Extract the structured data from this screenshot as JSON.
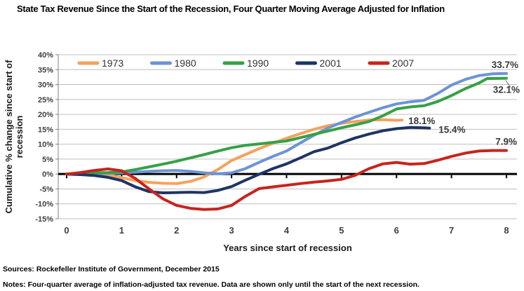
{
  "title": "State Tax Revenue Since the Start of the Recession, Four Quarter Moving Average Adjusted for Inflation",
  "footer": {
    "sources": "Sources: Rockefeller Institute of Government, December 2015",
    "notes": "Notes: Four-quarter average of inflation-adjusted tax revenue. Data are shown only until the start of the next recession."
  },
  "chart_data": {
    "type": "line",
    "title": "State Tax Revenue Since the Start of the Recession, Four Quarter Moving Average Adjusted for Inflation",
    "xlabel": "Years since start of recession",
    "ylabel": "Cumulative % change since start of recession",
    "ylabel_lines": [
      "Cumulative % change since start of",
      "recession"
    ],
    "xlim": [
      0,
      8
    ],
    "ylim": [
      -15,
      40
    ],
    "x_ticks": [
      0,
      1,
      2,
      3,
      4,
      5,
      6,
      7,
      8
    ],
    "y_ticks": [
      40,
      35,
      30,
      25,
      20,
      15,
      10,
      5,
      0,
      -5,
      -10,
      -15
    ],
    "y_tick_suffix": "%",
    "grid": true,
    "grid_color": "#BFBFBF",
    "zero_line_color": "#000000",
    "legend_position": "top",
    "series": [
      {
        "name": "1973",
        "color": "#F5A25D",
        "end_label": "18.1%",
        "points": [
          [
            0,
            0
          ],
          [
            0.25,
            0.2
          ],
          [
            0.5,
            0.1
          ],
          [
            0.75,
            -0.3
          ],
          [
            1,
            -1.2
          ],
          [
            1.25,
            -2.2
          ],
          [
            1.5,
            -2.8
          ],
          [
            1.75,
            -3.1
          ],
          [
            2,
            -3.2
          ],
          [
            2.25,
            -2.5
          ],
          [
            2.5,
            -1.0
          ],
          [
            2.75,
            1.5
          ],
          [
            3,
            4.5
          ],
          [
            3.25,
            6.5
          ],
          [
            3.5,
            8.5
          ],
          [
            3.75,
            10.3
          ],
          [
            4,
            12.0
          ],
          [
            4.25,
            13.5
          ],
          [
            4.5,
            15.0
          ],
          [
            4.75,
            16.2
          ],
          [
            5,
            17.0
          ],
          [
            5.25,
            17.6
          ],
          [
            5.5,
            18.1
          ],
          [
            5.75,
            18.2
          ],
          [
            6,
            18.0
          ],
          [
            6.1,
            18.1
          ]
        ]
      },
      {
        "name": "1980",
        "color": "#6D93D5",
        "end_label": "33.7%",
        "points": [
          [
            0,
            0
          ],
          [
            0.25,
            0.1
          ],
          [
            0.5,
            0.1
          ],
          [
            0.75,
            0.2
          ],
          [
            1,
            0.4
          ],
          [
            1.25,
            0.6
          ],
          [
            1.5,
            0.9
          ],
          [
            1.75,
            1.1
          ],
          [
            2,
            1.2
          ],
          [
            2.25,
            0.9
          ],
          [
            2.5,
            0.4
          ],
          [
            2.75,
            0.1
          ],
          [
            3,
            0.4
          ],
          [
            3.25,
            1.8
          ],
          [
            3.5,
            3.9
          ],
          [
            3.75,
            5.9
          ],
          [
            4,
            7.7
          ],
          [
            4.25,
            10.4
          ],
          [
            4.5,
            13.0
          ],
          [
            4.75,
            15.4
          ],
          [
            5,
            17.3
          ],
          [
            5.25,
            19.1
          ],
          [
            5.5,
            20.7
          ],
          [
            5.75,
            22.2
          ],
          [
            6,
            23.5
          ],
          [
            6.25,
            24.2
          ],
          [
            6.5,
            24.7
          ],
          [
            6.75,
            27.0
          ],
          [
            7,
            29.8
          ],
          [
            7.25,
            31.7
          ],
          [
            7.5,
            33.0
          ],
          [
            7.75,
            33.6
          ],
          [
            8,
            33.7
          ]
        ]
      },
      {
        "name": "1990",
        "color": "#36A145",
        "end_label": "32.1%",
        "points": [
          [
            0,
            0
          ],
          [
            0.25,
            0.2
          ],
          [
            0.5,
            0.4
          ],
          [
            0.75,
            0.5
          ],
          [
            1,
            0.7
          ],
          [
            1.25,
            1.5
          ],
          [
            1.5,
            2.4
          ],
          [
            1.75,
            3.3
          ],
          [
            2,
            4.3
          ],
          [
            2.25,
            5.4
          ],
          [
            2.5,
            6.5
          ],
          [
            2.75,
            7.7
          ],
          [
            3,
            8.8
          ],
          [
            3.25,
            9.6
          ],
          [
            3.5,
            10.1
          ],
          [
            3.75,
            10.6
          ],
          [
            4,
            11.1
          ],
          [
            4.25,
            12.2
          ],
          [
            4.5,
            13.3
          ],
          [
            4.75,
            14.4
          ],
          [
            5,
            15.5
          ],
          [
            5.25,
            16.5
          ],
          [
            5.5,
            17.6
          ],
          [
            5.75,
            19.5
          ],
          [
            6,
            21.8
          ],
          [
            6.25,
            22.5
          ],
          [
            6.5,
            22.9
          ],
          [
            6.75,
            24.3
          ],
          [
            7,
            26.3
          ],
          [
            7.25,
            28.6
          ],
          [
            7.5,
            30.5
          ],
          [
            7.65,
            32.0
          ],
          [
            8,
            32.1
          ]
        ]
      },
      {
        "name": "2001",
        "color": "#1E3563",
        "end_label": "15.4%",
        "points": [
          [
            0,
            0
          ],
          [
            0.25,
            -0.2
          ],
          [
            0.5,
            -0.5
          ],
          [
            0.75,
            -1.1
          ],
          [
            1,
            -2.2
          ],
          [
            1.25,
            -4.3
          ],
          [
            1.5,
            -5.9
          ],
          [
            1.75,
            -6.3
          ],
          [
            2,
            -6.2
          ],
          [
            2.25,
            -6.1
          ],
          [
            2.5,
            -6.2
          ],
          [
            2.75,
            -5.5
          ],
          [
            3,
            -4.2
          ],
          [
            3.25,
            -2.1
          ],
          [
            3.5,
            -0.1
          ],
          [
            3.75,
            1.8
          ],
          [
            4,
            3.4
          ],
          [
            4.25,
            5.4
          ],
          [
            4.5,
            7.5
          ],
          [
            4.75,
            8.7
          ],
          [
            5,
            10.5
          ],
          [
            5.25,
            12.1
          ],
          [
            5.5,
            13.4
          ],
          [
            5.75,
            14.5
          ],
          [
            6,
            15.2
          ],
          [
            6.25,
            15.6
          ],
          [
            6.5,
            15.5
          ],
          [
            6.6,
            15.4
          ]
        ]
      },
      {
        "name": "2007",
        "color": "#C7241E",
        "end_label": "7.9%",
        "points": [
          [
            0,
            0
          ],
          [
            0.25,
            0.5
          ],
          [
            0.5,
            1.2
          ],
          [
            0.75,
            1.7
          ],
          [
            1,
            1.1
          ],
          [
            1.25,
            -1.5
          ],
          [
            1.5,
            -5.0
          ],
          [
            1.75,
            -8.3
          ],
          [
            2,
            -10.5
          ],
          [
            2.25,
            -11.5
          ],
          [
            2.5,
            -11.9
          ],
          [
            2.75,
            -11.7
          ],
          [
            3,
            -10.5
          ],
          [
            3.25,
            -7.5
          ],
          [
            3.5,
            -4.9
          ],
          [
            3.75,
            -4.3
          ],
          [
            4,
            -3.8
          ],
          [
            4.25,
            -3.2
          ],
          [
            4.5,
            -2.7
          ],
          [
            4.75,
            -2.3
          ],
          [
            5,
            -1.8
          ],
          [
            5.25,
            -0.4
          ],
          [
            5.5,
            1.8
          ],
          [
            5.75,
            3.4
          ],
          [
            6,
            3.9
          ],
          [
            6.25,
            3.3
          ],
          [
            6.5,
            3.5
          ],
          [
            6.75,
            4.6
          ],
          [
            7,
            5.9
          ],
          [
            7.25,
            7.0
          ],
          [
            7.5,
            7.7
          ],
          [
            7.75,
            7.9
          ],
          [
            8,
            7.9
          ]
        ]
      }
    ]
  }
}
